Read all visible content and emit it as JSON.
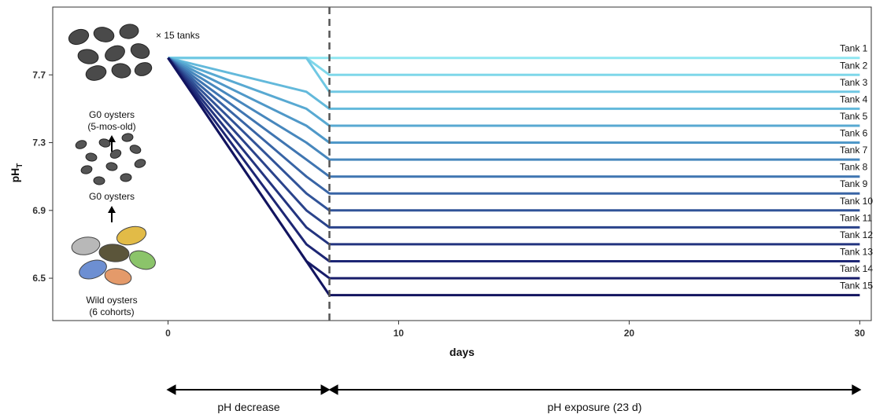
{
  "chart_data": {
    "type": "line",
    "xlabel": "days",
    "ylabel": "pH",
    "ylabel_sub": "T",
    "xlim": [
      -5,
      30.5
    ],
    "ylim": [
      6.25,
      8.1
    ],
    "x_ticks": [
      0,
      10,
      20,
      30
    ],
    "x_tick_labels": [
      "0",
      "10",
      "20",
      "30"
    ],
    "y_ticks": [
      6.5,
      6.9,
      7.3,
      7.7
    ],
    "y_tick_labels": [
      "6.5",
      "6.9",
      "7.3",
      "7.7"
    ],
    "grid": false,
    "start_ph": 7.8,
    "start_day": 0,
    "end_day": 30,
    "exposure_start_day": 7,
    "series": [
      {
        "name": "Tank 1",
        "x": [
          0,
          7,
          30
        ],
        "y": [
          7.8,
          7.8,
          7.8
        ]
      },
      {
        "name": "Tank 2",
        "x": [
          0,
          6,
          7,
          30
        ],
        "y": [
          7.8,
          7.8,
          7.7,
          7.7
        ]
      },
      {
        "name": "Tank 3",
        "x": [
          0,
          6,
          7,
          30
        ],
        "y": [
          7.8,
          7.8,
          7.6,
          7.6
        ]
      },
      {
        "name": "Tank 4",
        "x": [
          0,
          6,
          7,
          30
        ],
        "y": [
          7.8,
          7.6,
          7.5,
          7.5
        ]
      },
      {
        "name": "Tank 5",
        "x": [
          0,
          6,
          7,
          30
        ],
        "y": [
          7.8,
          7.5,
          7.4,
          7.4
        ]
      },
      {
        "name": "Tank 6",
        "x": [
          0,
          6,
          7,
          30
        ],
        "y": [
          7.8,
          7.4,
          7.3,
          7.3
        ]
      },
      {
        "name": "Tank 7",
        "x": [
          0,
          6,
          7,
          30
        ],
        "y": [
          7.8,
          7.3,
          7.2,
          7.2
        ]
      },
      {
        "name": "Tank 8",
        "x": [
          0,
          6,
          7,
          30
        ],
        "y": [
          7.8,
          7.2,
          7.1,
          7.1
        ]
      },
      {
        "name": "Tank 9",
        "x": [
          0,
          6,
          7,
          30
        ],
        "y": [
          7.8,
          7.1,
          7.0,
          7.0
        ]
      },
      {
        "name": "Tank 10",
        "x": [
          0,
          6,
          7,
          30
        ],
        "y": [
          7.8,
          7.0,
          6.9,
          6.9
        ]
      },
      {
        "name": "Tank 11",
        "x": [
          0,
          6,
          7,
          30
        ],
        "y": [
          7.8,
          6.9,
          6.8,
          6.8
        ]
      },
      {
        "name": "Tank 12",
        "x": [
          0,
          6,
          7,
          30
        ],
        "y": [
          7.8,
          6.8,
          6.7,
          6.7
        ]
      },
      {
        "name": "Tank 13",
        "x": [
          0,
          6,
          7,
          30
        ],
        "y": [
          7.8,
          6.7,
          6.6,
          6.6
        ]
      },
      {
        "name": "Tank 14",
        "x": [
          0,
          6,
          7,
          30
        ],
        "y": [
          7.8,
          6.6,
          6.5,
          6.5
        ]
      },
      {
        "name": "Tank 15",
        "x": [
          0,
          6,
          7,
          30
        ],
        "y": [
          7.8,
          6.6,
          6.4,
          6.4
        ]
      }
    ],
    "colors": [
      "#8fe6f0",
      "#7fd7ea",
      "#70c8e3",
      "#63b9db",
      "#58a9d2",
      "#4f98c8",
      "#4787bd",
      "#3f75b1",
      "#3864a5",
      "#315398",
      "#2a438b",
      "#23347f",
      "#1d2674",
      "#171c69",
      "#12145f"
    ],
    "annotations": {
      "tanks_note": "× 15 tanks",
      "stage_g0_adult": "G0 oysters",
      "stage_g0_adult_age": "(5-mos-old)",
      "stage_g0": "G0 oysters",
      "stage_wild": "Wild oysters",
      "stage_wild_cohorts": "(6 cohorts)",
      "phase_decrease": "pH decrease",
      "phase_exposure": "pH exposure (23 d)"
    }
  }
}
